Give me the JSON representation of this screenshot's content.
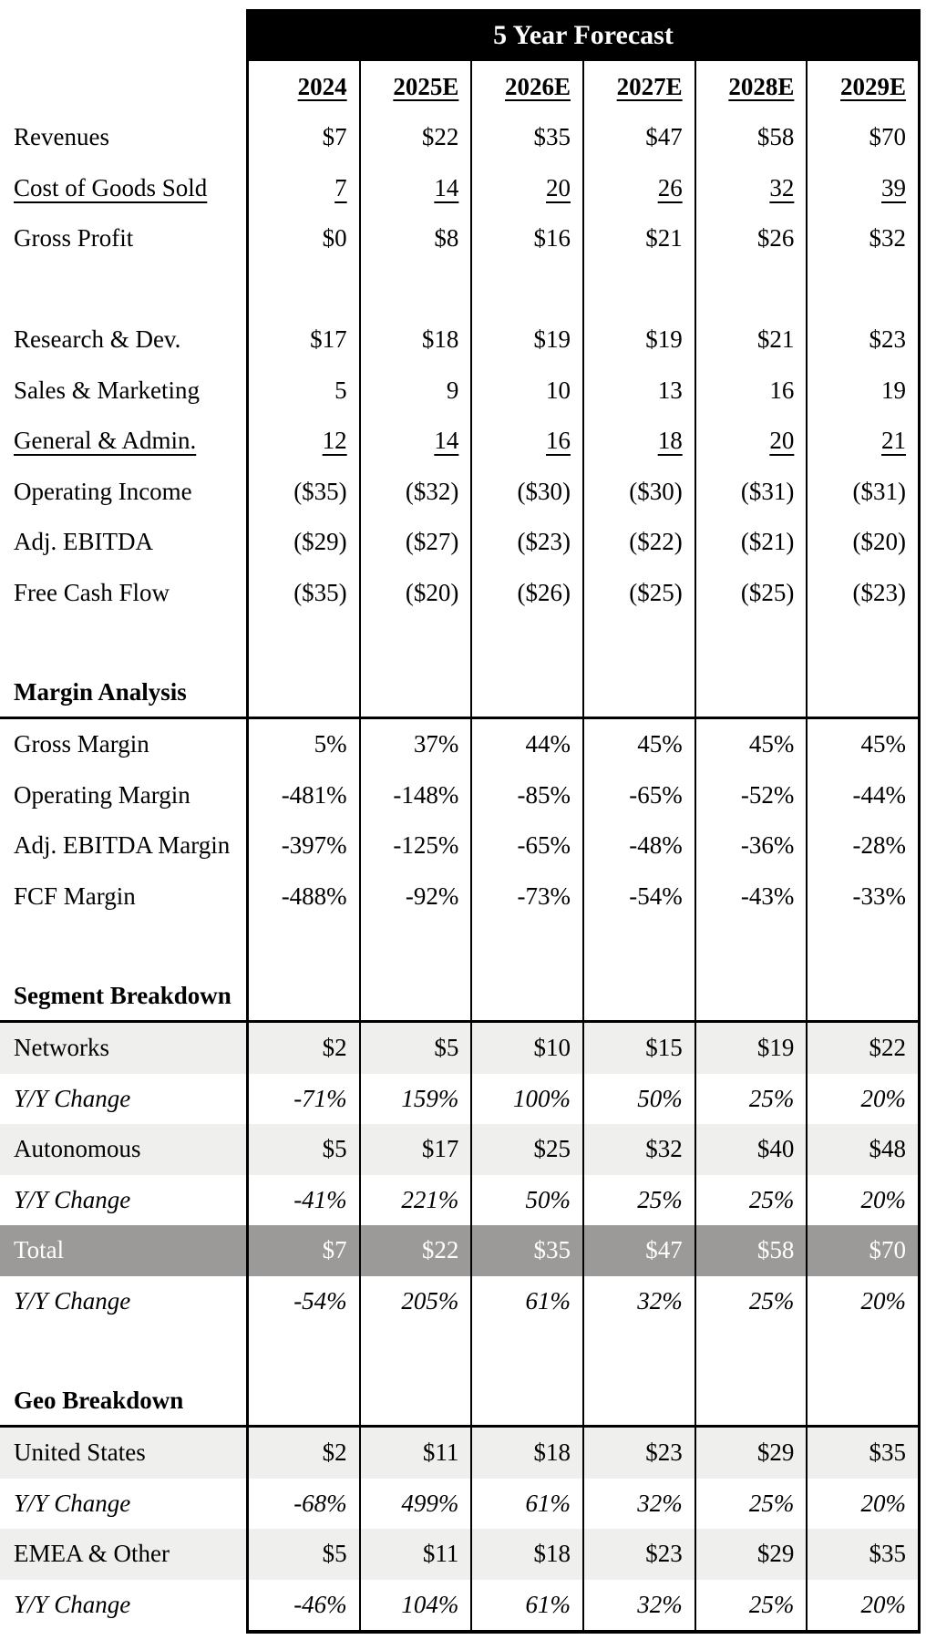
{
  "table": {
    "title": "5 Year Forecast",
    "columns": [
      "2024",
      "2025E",
      "2026E",
      "2027E",
      "2028E",
      "2029E"
    ],
    "rows": [
      {
        "label": "Revenues",
        "variant": "plain",
        "values": [
          "$7",
          "$22",
          "$35",
          "$47",
          "$58",
          "$70"
        ]
      },
      {
        "label": "Cost of Goods Sold",
        "variant": "underline",
        "values": [
          "7",
          "14",
          "20",
          "26",
          "32",
          "39"
        ]
      },
      {
        "label": "Gross Profit",
        "variant": "plain",
        "values": [
          "$0",
          "$8",
          "$16",
          "$21",
          "$26",
          "$32"
        ]
      },
      {
        "label": "",
        "variant": "spacer",
        "values": [
          "",
          "",
          "",
          "",
          "",
          ""
        ]
      },
      {
        "label": "Research & Dev.",
        "variant": "plain",
        "values": [
          "$17",
          "$18",
          "$19",
          "$19",
          "$21",
          "$23"
        ]
      },
      {
        "label": "Sales & Marketing",
        "variant": "plain",
        "values": [
          "5",
          "9",
          "10",
          "13",
          "16",
          "19"
        ]
      },
      {
        "label": "General & Admin.",
        "variant": "underline",
        "values": [
          "12",
          "14",
          "16",
          "18",
          "20",
          "21"
        ]
      },
      {
        "label": "Operating Income",
        "variant": "plain",
        "values": [
          "($35)",
          "($32)",
          "($30)",
          "($30)",
          "($31)",
          "($31)"
        ]
      },
      {
        "label": "Adj. EBITDA",
        "variant": "plain",
        "values": [
          "($29)",
          "($27)",
          "($23)",
          "($22)",
          "($21)",
          "($20)"
        ]
      },
      {
        "label": "Free Cash Flow",
        "variant": "plain",
        "values": [
          "($35)",
          "($20)",
          "($26)",
          "($25)",
          "($25)",
          "($23)"
        ]
      },
      {
        "label": "",
        "variant": "spacer",
        "values": [
          "",
          "",
          "",
          "",
          "",
          ""
        ]
      },
      {
        "label": "Margin Analysis",
        "variant": "section",
        "values": [
          "",
          "",
          "",
          "",
          "",
          ""
        ]
      },
      {
        "label": "Gross Margin",
        "variant": "plain",
        "values": [
          "5%",
          "37%",
          "44%",
          "45%",
          "45%",
          "45%"
        ]
      },
      {
        "label": "Operating Margin",
        "variant": "plain",
        "values": [
          "-481%",
          "-148%",
          "-85%",
          "-65%",
          "-52%",
          "-44%"
        ]
      },
      {
        "label": "Adj. EBITDA Margin",
        "variant": "plain",
        "values": [
          "-397%",
          "-125%",
          "-65%",
          "-48%",
          "-36%",
          "-28%"
        ]
      },
      {
        "label": "FCF Margin",
        "variant": "plain",
        "values": [
          "-488%",
          "-92%",
          "-73%",
          "-54%",
          "-43%",
          "-33%"
        ]
      },
      {
        "label": "",
        "variant": "spacer",
        "values": [
          "",
          "",
          "",
          "",
          "",
          ""
        ]
      },
      {
        "label": "Segment Breakdown",
        "variant": "section",
        "values": [
          "",
          "",
          "",
          "",
          "",
          ""
        ]
      },
      {
        "label": "Networks",
        "variant": "shaded",
        "values": [
          "$2",
          "$5",
          "$10",
          "$15",
          "$19",
          "$22"
        ]
      },
      {
        "label": "Y/Y Change",
        "variant": "yoy",
        "values": [
          "-71%",
          "159%",
          "100%",
          "50%",
          "25%",
          "20%"
        ]
      },
      {
        "label": "Autonomous",
        "variant": "shaded",
        "values": [
          "$5",
          "$17",
          "$25",
          "$32",
          "$40",
          "$48"
        ]
      },
      {
        "label": "Y/Y Change",
        "variant": "yoy",
        "values": [
          "-41%",
          "221%",
          "50%",
          "25%",
          "25%",
          "20%"
        ]
      },
      {
        "label": "Total",
        "variant": "total",
        "values": [
          "$7",
          "$22",
          "$35",
          "$47",
          "$58",
          "$70"
        ]
      },
      {
        "label": "Y/Y Change",
        "variant": "yoy",
        "values": [
          "-54%",
          "205%",
          "61%",
          "32%",
          "25%",
          "20%"
        ]
      },
      {
        "label": "",
        "variant": "spacer",
        "values": [
          "",
          "",
          "",
          "",
          "",
          ""
        ]
      },
      {
        "label": "Geo Breakdown",
        "variant": "section",
        "values": [
          "",
          "",
          "",
          "",
          "",
          ""
        ]
      },
      {
        "label": "United States",
        "variant": "shaded",
        "values": [
          "$2",
          "$11",
          "$18",
          "$23",
          "$29",
          "$35"
        ]
      },
      {
        "label": "Y/Y Change",
        "variant": "yoy",
        "values": [
          "-68%",
          "499%",
          "61%",
          "32%",
          "25%",
          "20%"
        ]
      },
      {
        "label": "EMEA & Other",
        "variant": "shaded",
        "values": [
          "$5",
          "$11",
          "$18",
          "$23",
          "$29",
          "$35"
        ]
      },
      {
        "label": "Y/Y Change",
        "variant": "yoy",
        "values": [
          "-46%",
          "104%",
          "61%",
          "32%",
          "25%",
          "20%"
        ]
      }
    ],
    "colors": {
      "header_bg": "#000000",
      "header_text": "#ffffff",
      "shaded_row_bg": "#efefee",
      "total_row_bg": "#9b9a99",
      "total_row_text": "#ffffff",
      "border": "#000000",
      "body_text": "#000000"
    }
  }
}
